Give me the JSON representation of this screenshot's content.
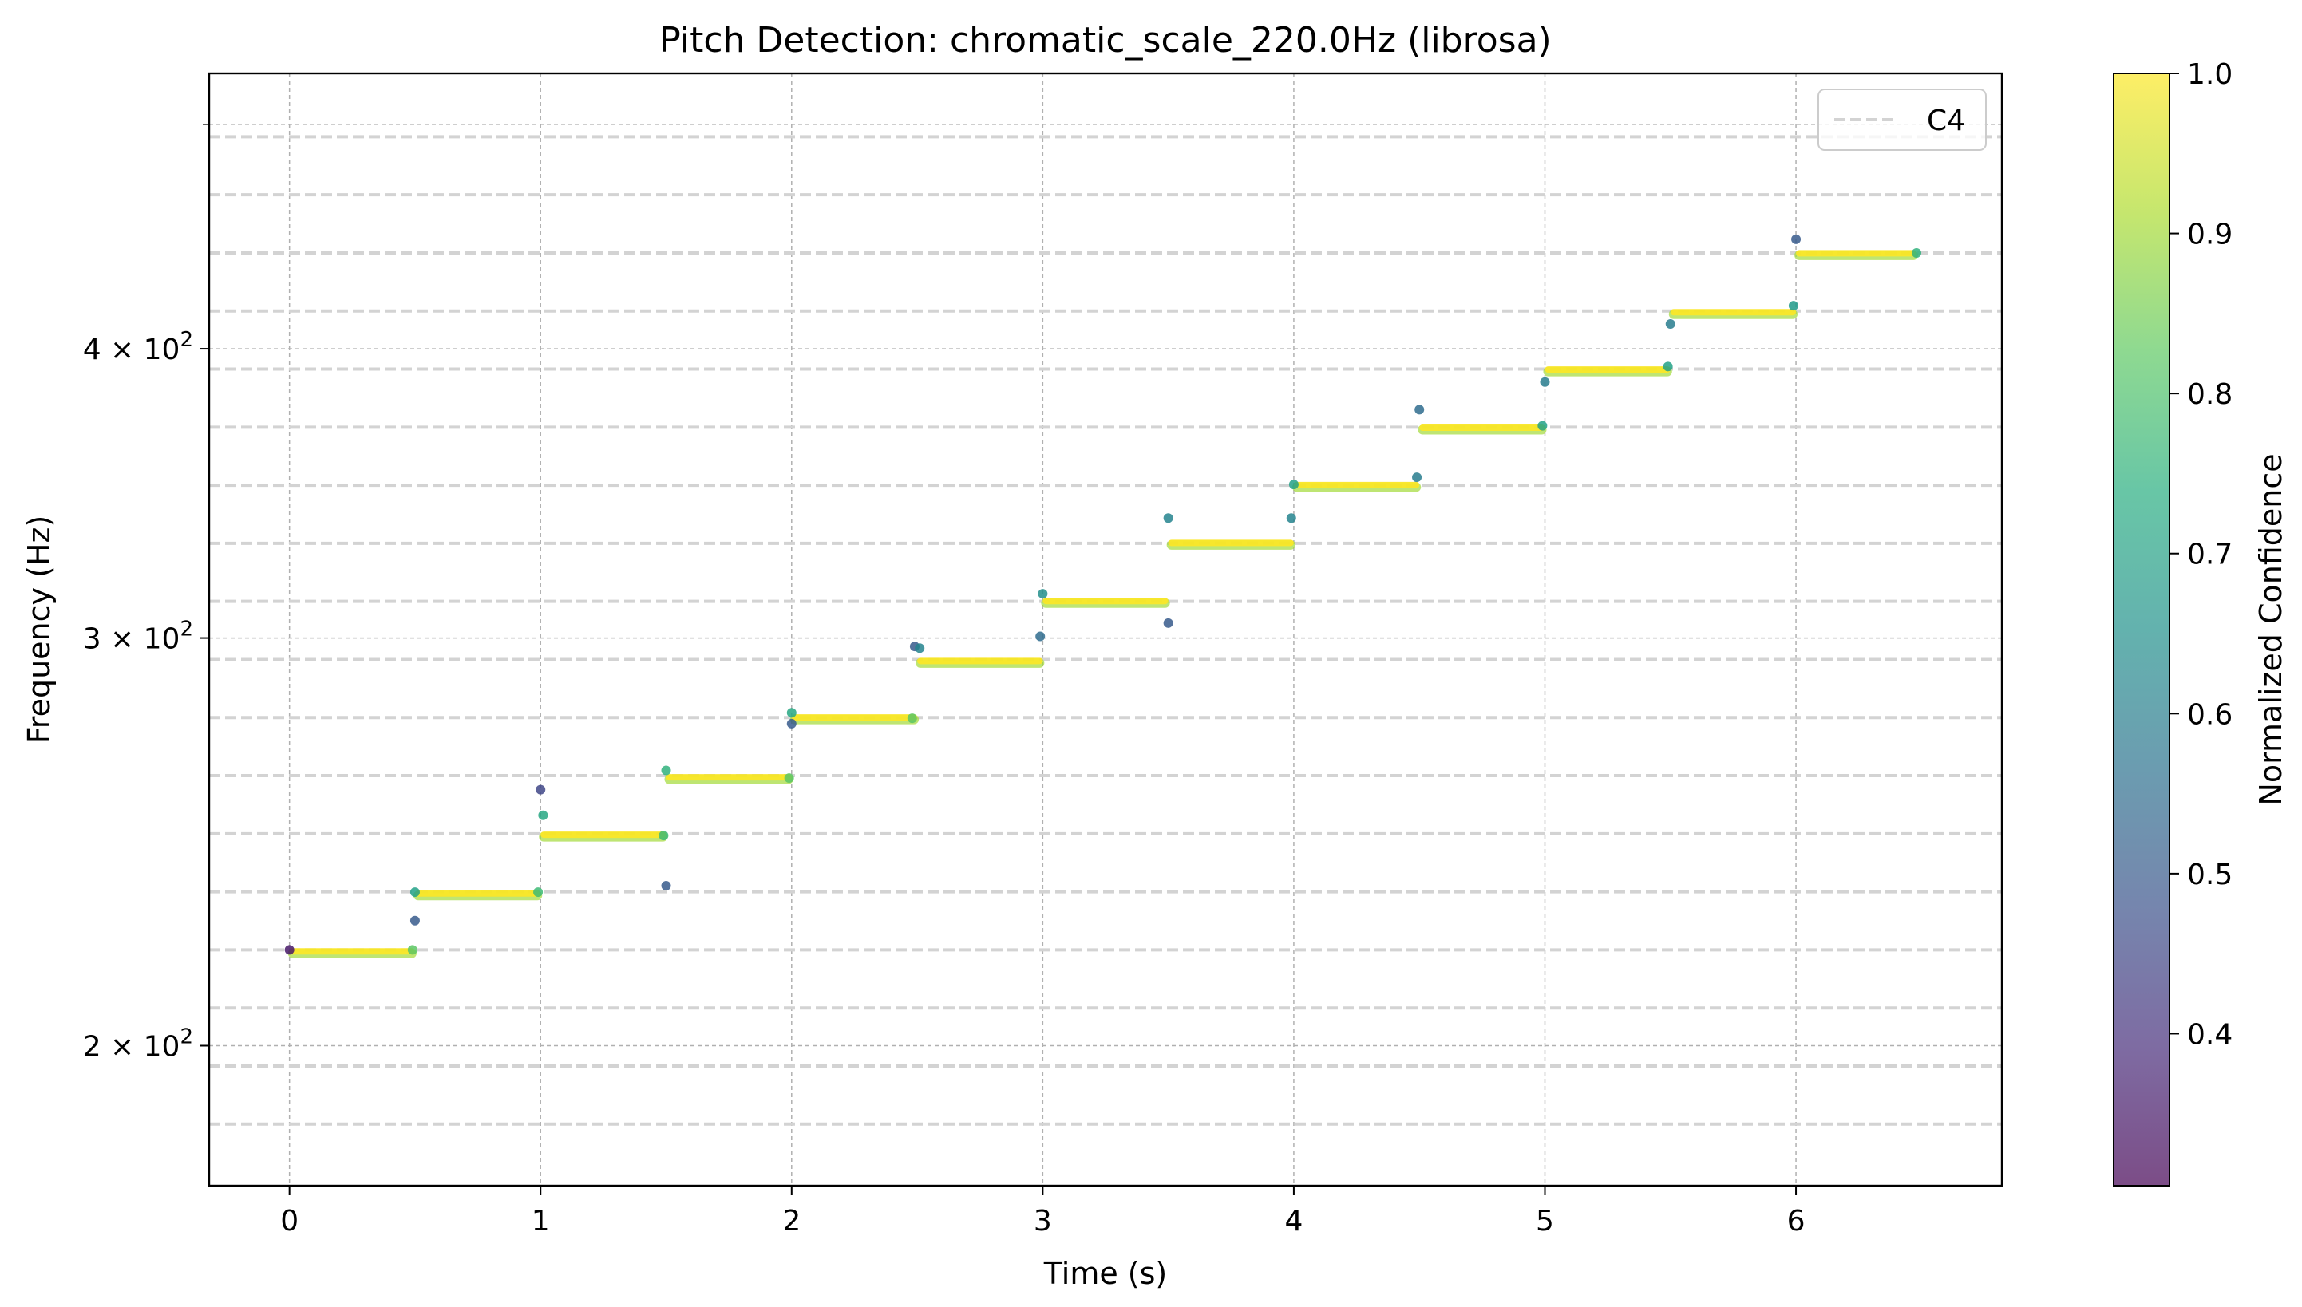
{
  "chart_data": {
    "type": "scatter",
    "title": "Pitch Detection: chromatic_scale_220.0Hz (librosa)",
    "xlabel": "Time (s)",
    "ylabel": "Frequency (Hz)",
    "xlim": [
      -0.32,
      6.82
    ],
    "ylim": [
      174,
      526
    ],
    "yscale": "log",
    "x_ticks": [
      "0",
      "1",
      "2",
      "3",
      "4",
      "5",
      "6"
    ],
    "y_ticks": [
      {
        "value": 200,
        "mantissa": "2",
        "base": "10",
        "exp": "2"
      },
      {
        "value": 300,
        "mantissa": "3",
        "base": "10",
        "exp": "2"
      },
      {
        "value": 400,
        "mantissa": "4",
        "base": "10",
        "exp": "2"
      }
    ],
    "y_minor_tick_at": 500,
    "grid": true,
    "legend": {
      "position": "top-right",
      "entries": [
        "C4"
      ]
    },
    "reference_lines_hz": [
      185.0,
      196.0,
      207.65,
      220.0,
      233.08,
      246.94,
      261.63,
      277.18,
      293.66,
      311.13,
      329.63,
      349.23,
      369.99,
      392.0,
      415.3,
      440.0,
      466.16,
      493.88
    ],
    "colorbar": {
      "label": "Normalized Confidence",
      "range": [
        0.305,
        1.0
      ],
      "ticks": [
        "0.4",
        "0.5",
        "0.6",
        "0.7",
        "0.8",
        "0.9",
        "1.0"
      ],
      "colormap": "viridis",
      "alpha": 0.7
    },
    "notes": [
      {
        "t_start": 0.0,
        "t_end": 0.5,
        "freq": 219.5
      },
      {
        "t_start": 0.5,
        "t_end": 1.0,
        "freq": 232.5
      },
      {
        "t_start": 1.0,
        "t_end": 1.5,
        "freq": 246.5
      },
      {
        "t_start": 1.5,
        "t_end": 2.0,
        "freq": 261.0
      },
      {
        "t_start": 2.0,
        "t_end": 2.5,
        "freq": 277.0
      },
      {
        "t_start": 2.5,
        "t_end": 3.0,
        "freq": 293.0
      },
      {
        "t_start": 3.0,
        "t_end": 3.5,
        "freq": 311.0
      },
      {
        "t_start": 3.5,
        "t_end": 4.0,
        "freq": 329.5
      },
      {
        "t_start": 4.0,
        "t_end": 4.5,
        "freq": 349.0
      },
      {
        "t_start": 4.5,
        "t_end": 5.0,
        "freq": 369.5
      },
      {
        "t_start": 5.0,
        "t_end": 5.5,
        "freq": 391.5
      },
      {
        "t_start": 5.5,
        "t_end": 6.0,
        "freq": 414.5
      },
      {
        "t_start": 6.0,
        "t_end": 6.48,
        "freq": 439.5
      }
    ],
    "outliers": [
      {
        "t": 0.0,
        "freq": 220.0,
        "conf": 0.35
      },
      {
        "t": 0.49,
        "freq": 220.0,
        "conf": 0.82
      },
      {
        "t": 0.5,
        "freq": 226.5,
        "conf": 0.5
      },
      {
        "t": 0.5,
        "freq": 233.0,
        "conf": 0.7
      },
      {
        "t": 0.99,
        "freq": 233.0,
        "conf": 0.78
      },
      {
        "t": 1.0,
        "freq": 258.0,
        "conf": 0.45
      },
      {
        "t": 1.01,
        "freq": 251.5,
        "conf": 0.72
      },
      {
        "t": 1.49,
        "freq": 246.5,
        "conf": 0.78
      },
      {
        "t": 1.5,
        "freq": 234.5,
        "conf": 0.5
      },
      {
        "t": 1.5,
        "freq": 263.0,
        "conf": 0.75
      },
      {
        "t": 1.99,
        "freq": 261.0,
        "conf": 0.82
      },
      {
        "t": 2.0,
        "freq": 275.5,
        "conf": 0.5
      },
      {
        "t": 2.0,
        "freq": 278.5,
        "conf": 0.72
      },
      {
        "t": 2.48,
        "freq": 277.0,
        "conf": 0.82
      },
      {
        "t": 2.49,
        "freq": 297.5,
        "conf": 0.5
      },
      {
        "t": 2.51,
        "freq": 297.0,
        "conf": 0.62
      },
      {
        "t": 2.99,
        "freq": 300.5,
        "conf": 0.55
      },
      {
        "t": 3.0,
        "freq": 313.5,
        "conf": 0.65
      },
      {
        "t": 3.5,
        "freq": 304.5,
        "conf": 0.5
      },
      {
        "t": 3.5,
        "freq": 338.0,
        "conf": 0.62
      },
      {
        "t": 3.99,
        "freq": 338.0,
        "conf": 0.62
      },
      {
        "t": 4.0,
        "freq": 349.5,
        "conf": 0.7
      },
      {
        "t": 4.49,
        "freq": 352.0,
        "conf": 0.6
      },
      {
        "t": 4.5,
        "freq": 376.5,
        "conf": 0.55
      },
      {
        "t": 4.99,
        "freq": 370.5,
        "conf": 0.7
      },
      {
        "t": 5.0,
        "freq": 387.0,
        "conf": 0.6
      },
      {
        "t": 5.49,
        "freq": 393.0,
        "conf": 0.7
      },
      {
        "t": 5.5,
        "freq": 410.0,
        "conf": 0.6
      },
      {
        "t": 5.99,
        "freq": 417.5,
        "conf": 0.68
      },
      {
        "t": 6.0,
        "freq": 446.0,
        "conf": 0.5
      },
      {
        "t": 6.48,
        "freq": 440.0,
        "conf": 0.75
      }
    ]
  }
}
